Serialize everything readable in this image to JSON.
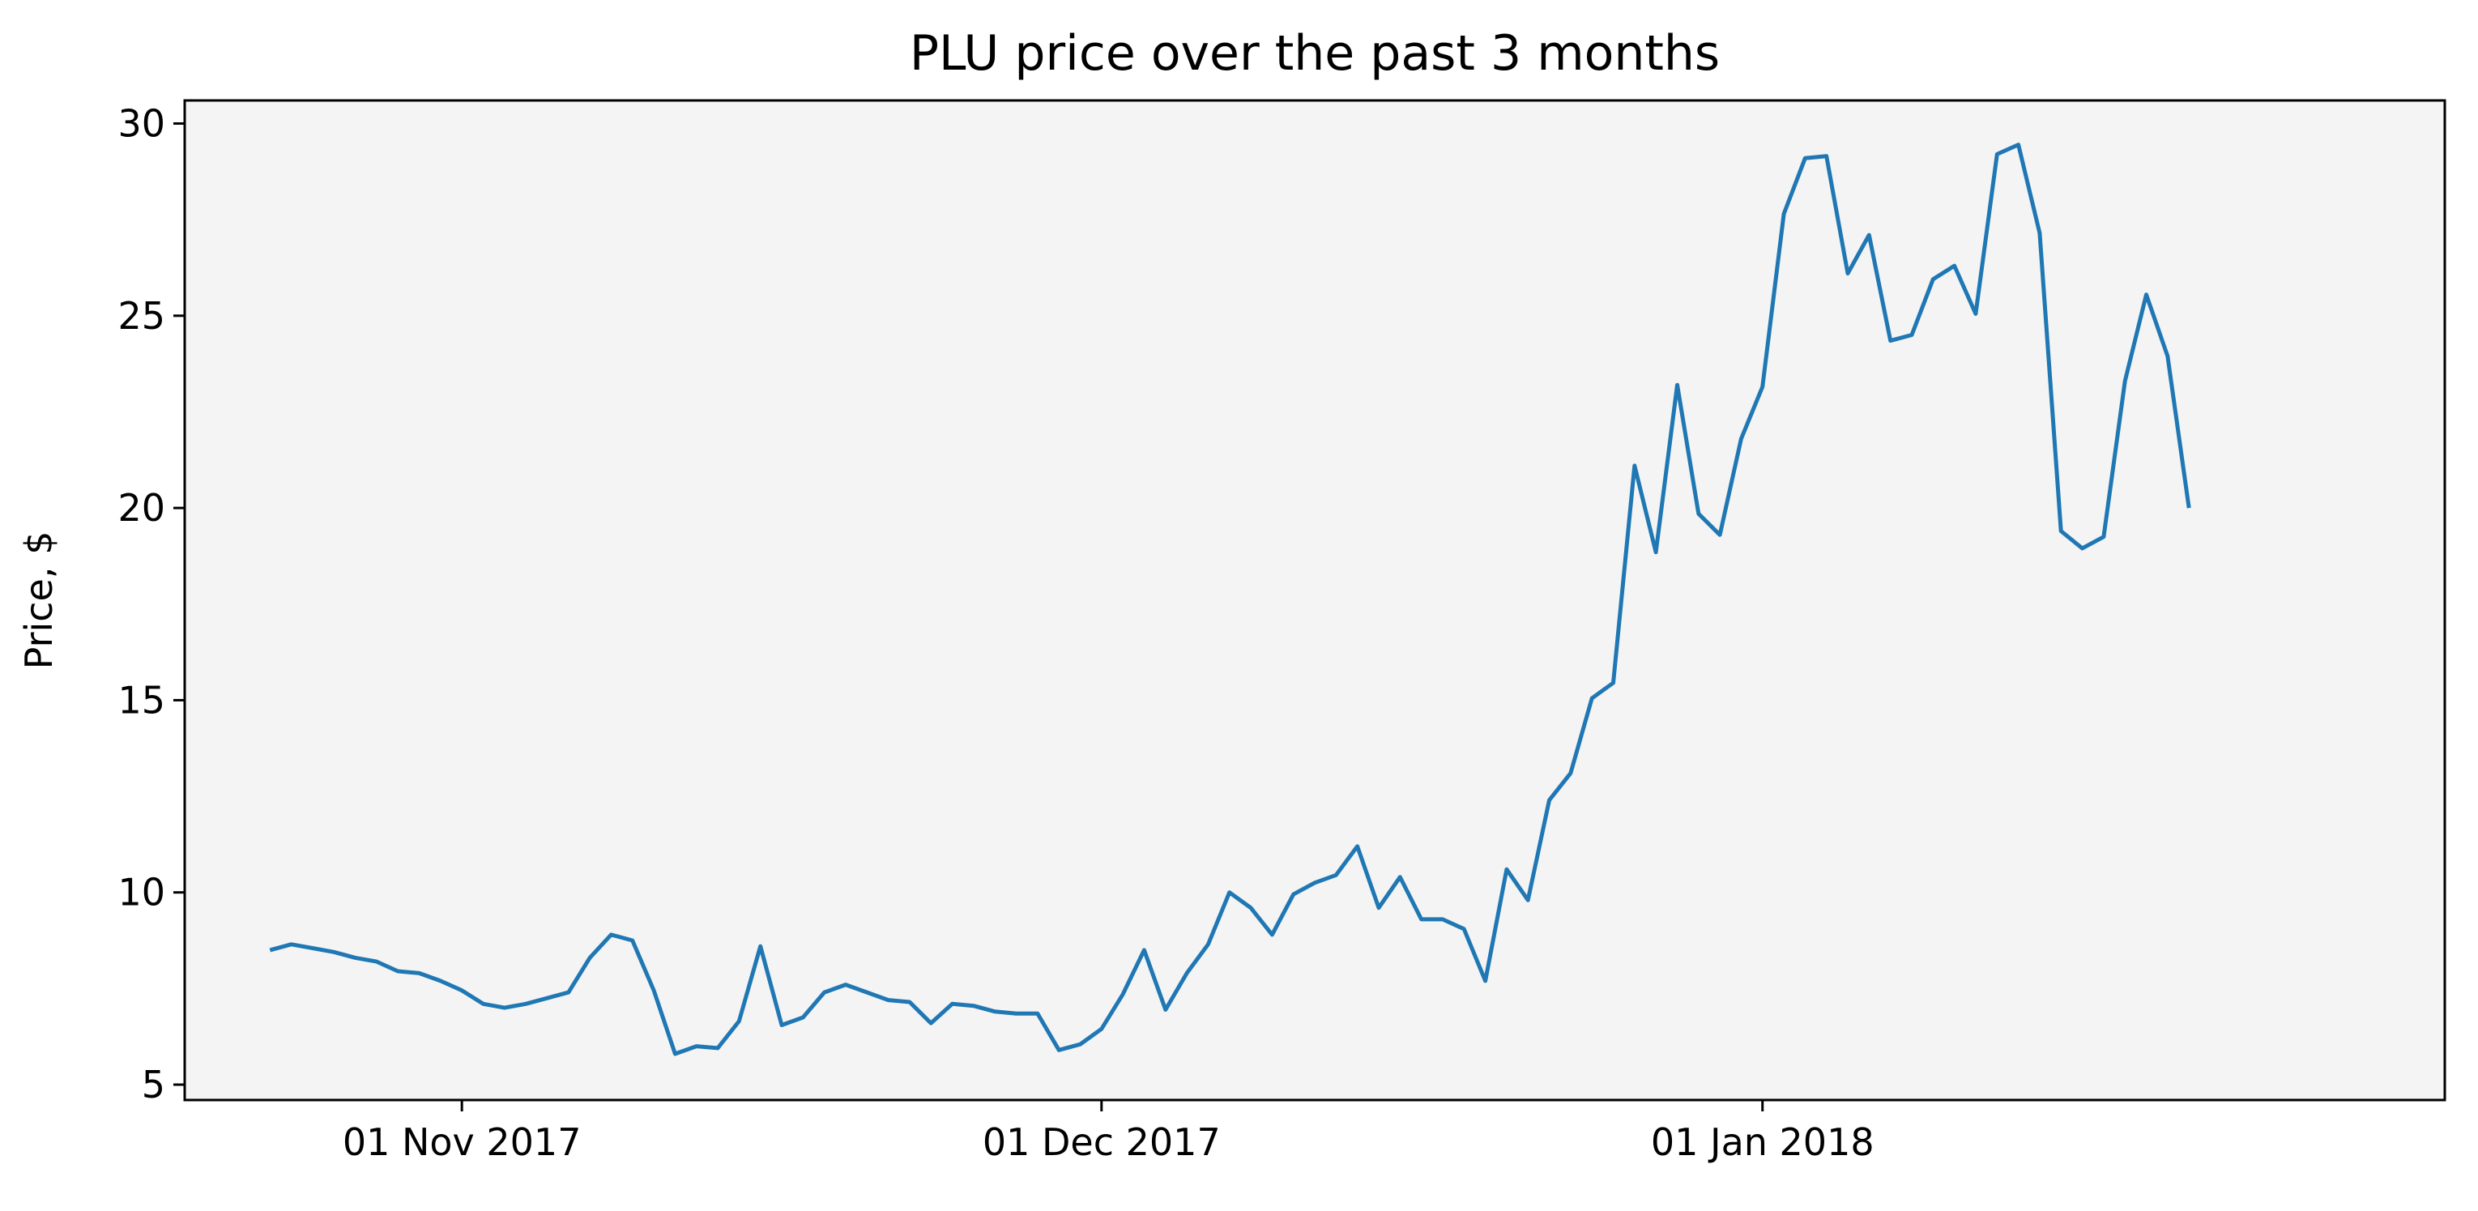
{
  "chart_data": {
    "type": "line",
    "title": "PLU price over the past 3 months",
    "xlabel": "",
    "ylabel": "Price, $",
    "xlim": [
      "2017-10-19",
      "2018-02-02"
    ],
    "ylim": [
      4.6,
      30.6
    ],
    "grid": false,
    "plot_background": "#f4f4f4",
    "line_color": "#1f77b4",
    "x_ticks": [
      {
        "date": "2017-11-01",
        "label": "01 Nov 2017"
      },
      {
        "date": "2017-12-01",
        "label": "01 Dec 2017"
      },
      {
        "date": "2018-01-01",
        "label": "01 Jan 2018"
      }
    ],
    "y_ticks": [
      {
        "value": 5,
        "label": "5"
      },
      {
        "value": 10,
        "label": "10"
      },
      {
        "value": 15,
        "label": "15"
      },
      {
        "value": 20,
        "label": "20"
      },
      {
        "value": 25,
        "label": "25"
      },
      {
        "value": 30,
        "label": "30"
      }
    ],
    "series": [
      {
        "points": [
          [
            "2017-10-23",
            8.5
          ],
          [
            "2017-10-24",
            8.65
          ],
          [
            "2017-10-25",
            8.55
          ],
          [
            "2017-10-26",
            8.45
          ],
          [
            "2017-10-27",
            8.3
          ],
          [
            "2017-10-28",
            8.2
          ],
          [
            "2017-10-29",
            7.95
          ],
          [
            "2017-10-30",
            7.9
          ],
          [
            "2017-10-31",
            7.7
          ],
          [
            "2017-11-01",
            7.45
          ],
          [
            "2017-11-02",
            7.1
          ],
          [
            "2017-11-03",
            7.0
          ],
          [
            "2017-11-04",
            7.1
          ],
          [
            "2017-11-05",
            7.25
          ],
          [
            "2017-11-06",
            7.4
          ],
          [
            "2017-11-07",
            8.3
          ],
          [
            "2017-11-08",
            8.9
          ],
          [
            "2017-11-09",
            8.75
          ],
          [
            "2017-11-10",
            7.45
          ],
          [
            "2017-11-11",
            5.8
          ],
          [
            "2017-11-12",
            6.0
          ],
          [
            "2017-11-13",
            5.95
          ],
          [
            "2017-11-14",
            6.65
          ],
          [
            "2017-11-15",
            8.6
          ],
          [
            "2017-11-16",
            6.55
          ],
          [
            "2017-11-17",
            6.75
          ],
          [
            "2017-11-18",
            7.4
          ],
          [
            "2017-11-19",
            7.6
          ],
          [
            "2017-11-20",
            7.4
          ],
          [
            "2017-11-21",
            7.2
          ],
          [
            "2017-11-22",
            7.15
          ],
          [
            "2017-11-23",
            6.6
          ],
          [
            "2017-11-24",
            7.1
          ],
          [
            "2017-11-25",
            7.05
          ],
          [
            "2017-11-26",
            6.9
          ],
          [
            "2017-11-27",
            6.85
          ],
          [
            "2017-11-28",
            6.85
          ],
          [
            "2017-11-29",
            5.9
          ],
          [
            "2017-11-30",
            6.05
          ],
          [
            "2017-12-01",
            6.45
          ],
          [
            "2017-12-02",
            7.35
          ],
          [
            "2017-12-03",
            8.5
          ],
          [
            "2017-12-04",
            6.95
          ],
          [
            "2017-12-05",
            7.9
          ],
          [
            "2017-12-06",
            8.65
          ],
          [
            "2017-12-07",
            10.0
          ],
          [
            "2017-12-08",
            9.6
          ],
          [
            "2017-12-09",
            8.9
          ],
          [
            "2017-12-10",
            9.95
          ],
          [
            "2017-12-11",
            10.25
          ],
          [
            "2017-12-12",
            10.45
          ],
          [
            "2017-12-13",
            11.2
          ],
          [
            "2017-12-14",
            9.6
          ],
          [
            "2017-12-15",
            10.4
          ],
          [
            "2017-12-16",
            9.3
          ],
          [
            "2017-12-17",
            9.3
          ],
          [
            "2017-12-18",
            9.05
          ],
          [
            "2017-12-19",
            7.7
          ],
          [
            "2017-12-20",
            10.6
          ],
          [
            "2017-12-21",
            9.8
          ],
          [
            "2017-12-22",
            12.4
          ],
          [
            "2017-12-23",
            13.1
          ],
          [
            "2017-12-24",
            15.05
          ],
          [
            "2017-12-25",
            15.45
          ],
          [
            "2017-12-26",
            21.1
          ],
          [
            "2017-12-27",
            18.85
          ],
          [
            "2017-12-28",
            23.2
          ],
          [
            "2017-12-29",
            19.85
          ],
          [
            "2017-12-30",
            19.3
          ],
          [
            "2017-12-31",
            21.8
          ],
          [
            "2018-01-01",
            23.15
          ],
          [
            "2018-01-02",
            27.65
          ],
          [
            "2018-01-03",
            29.1
          ],
          [
            "2018-01-04",
            29.15
          ],
          [
            "2018-01-05",
            26.1
          ],
          [
            "2018-01-06",
            27.1
          ],
          [
            "2018-01-07",
            24.35
          ],
          [
            "2018-01-08",
            24.5
          ],
          [
            "2018-01-09",
            25.95
          ],
          [
            "2018-01-10",
            26.3
          ],
          [
            "2018-01-11",
            25.05
          ],
          [
            "2018-01-12",
            29.2
          ],
          [
            "2018-01-13",
            29.45
          ],
          [
            "2018-01-14",
            27.15
          ],
          [
            "2018-01-15",
            19.4
          ],
          [
            "2018-01-16",
            18.95
          ],
          [
            "2018-01-17",
            19.25
          ],
          [
            "2018-01-18",
            23.3
          ],
          [
            "2018-01-19",
            25.55
          ],
          [
            "2018-01-20",
            23.95
          ],
          [
            "2018-01-21",
            20.0
          ]
        ]
      }
    ]
  }
}
